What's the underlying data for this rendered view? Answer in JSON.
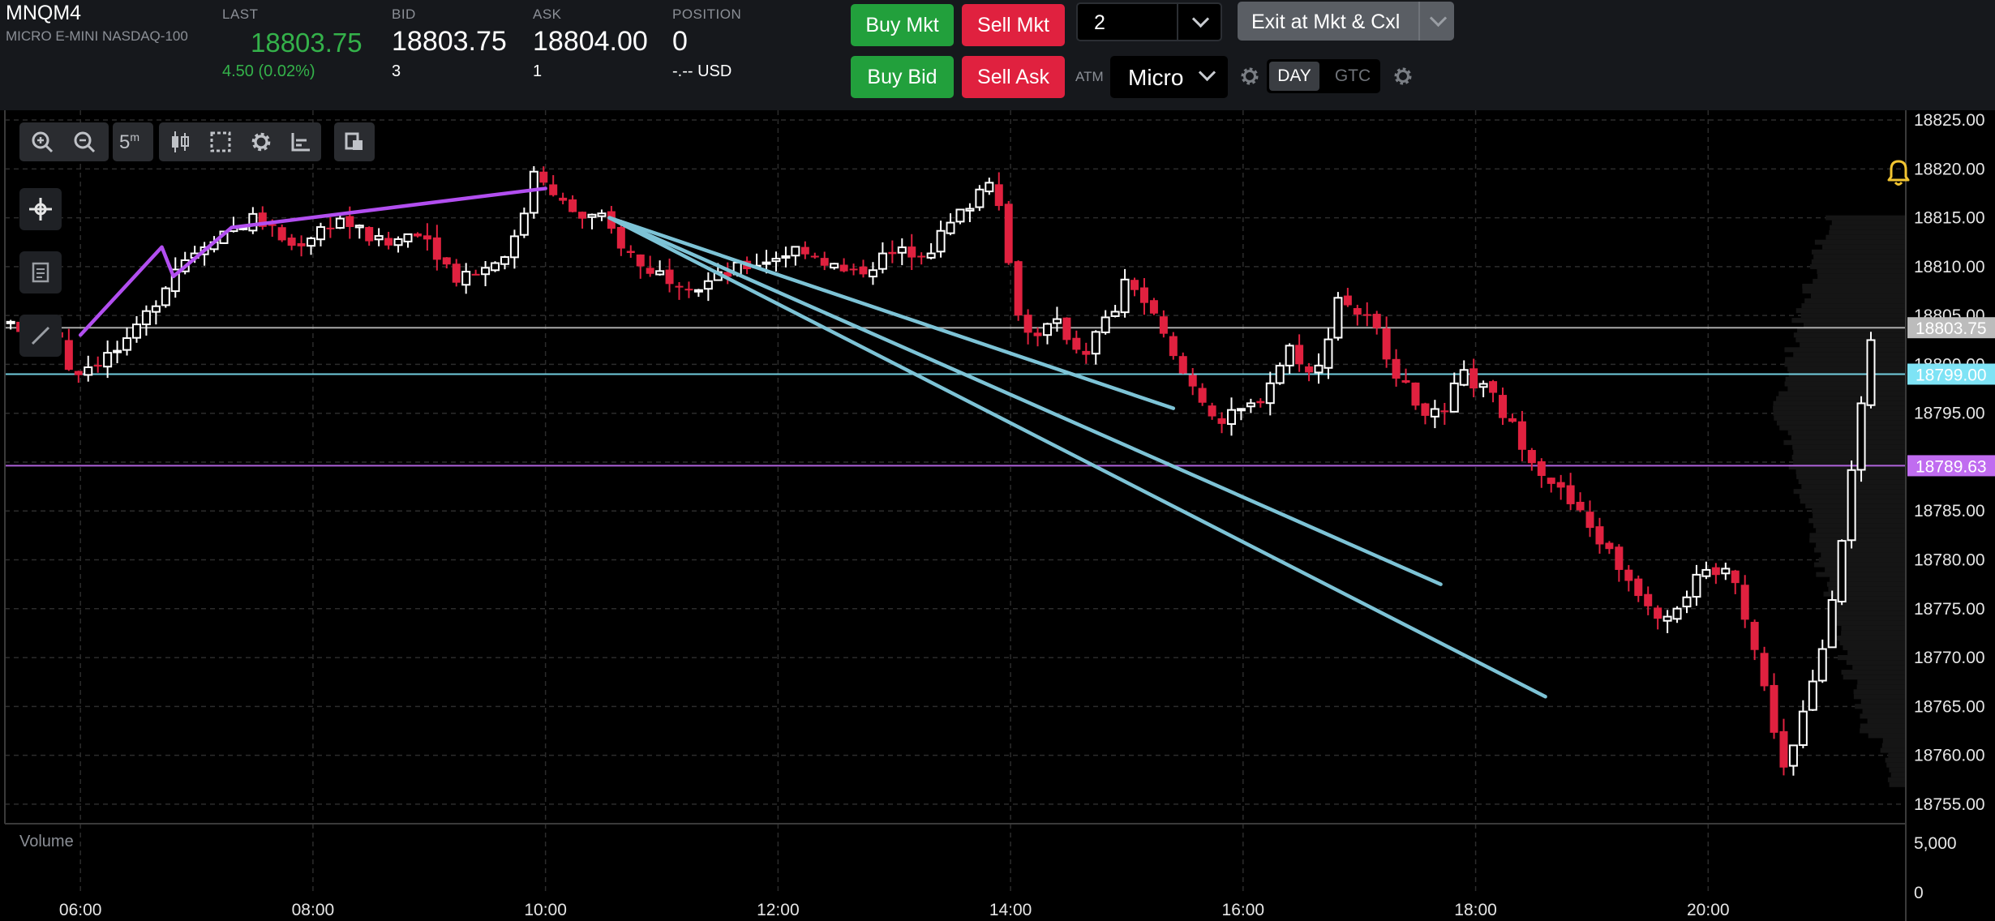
{
  "instrument": {
    "symbol": "MNQM4",
    "description": "MICRO E-MINI NASDAQ-100"
  },
  "quote": {
    "last_label": "LAST",
    "last": "18803.75",
    "change": "4.50 (0.02%)",
    "bid_label": "BID",
    "bid": "18803.75",
    "bid_size": "3",
    "ask_label": "ASK",
    "ask": "18804.00",
    "ask_size": "1",
    "position_label": "POSITION",
    "position": "0",
    "pnl": "-.-- USD"
  },
  "order_entry": {
    "buy_mkt": "Buy Mkt",
    "sell_mkt": "Sell Mkt",
    "buy_bid": "Buy Bid",
    "sell_ask": "Sell Ask",
    "quantity": "2",
    "exit_button": "Exit at Mkt & Cxl",
    "atm_label": "ATM",
    "atm_strategy": "Micro",
    "tif_day": "DAY",
    "tif_gtc": "GTC"
  },
  "toolbar": {
    "interval": "5",
    "interval_unit": "m"
  },
  "colors": {
    "up_candle": "#ffffff",
    "down_candle": "#e0213f",
    "trendline": "#7dc3d6",
    "purple_line": "#b24ef0",
    "last_price_tag": "#bcbcbc",
    "cyan_level": "#7ee3f5",
    "purple_level": "#c06cf0",
    "quote_green": "#34b24a"
  },
  "icons": [
    "zoom-in-icon",
    "zoom-out-icon",
    "candlestick-icon",
    "select-icon",
    "gear-icon",
    "axis-icon",
    "copy-icon",
    "crosshair-icon",
    "notes-icon",
    "draw-line-icon",
    "bell-icon",
    "chevron-down-icon"
  ],
  "chart_data": {
    "type": "candlestick",
    "instrument": "MNQM4",
    "ylim": [
      18753,
      18826
    ],
    "price_ticks": [
      "18825.00",
      "18820.00",
      "18815.00",
      "18810.00",
      "18805.00",
      "18800.00",
      "18795.00",
      "18790.00",
      "18785.00",
      "18780.00",
      "18775.00",
      "18770.00",
      "18765.00",
      "18760.00",
      "18755.00"
    ],
    "price_tick_values": [
      18825,
      18820,
      18815,
      18810,
      18805,
      18800,
      18795,
      18790,
      18785,
      18780,
      18775,
      18770,
      18765,
      18760,
      18755
    ],
    "time_ticks": [
      "06:00",
      "08:00",
      "10:00",
      "12:00",
      "14:00",
      "16:00",
      "18:00",
      "20:00"
    ],
    "time_tick_values": [
      6,
      8,
      10,
      12,
      14,
      16,
      18,
      20
    ],
    "xlim": [
      5.35,
      21.7
    ],
    "price_levels": [
      {
        "label": "18803.75",
        "price": 18803.75,
        "color": "#bcbcbc"
      },
      {
        "label": "18799.00",
        "price": 18799.0,
        "color": "#7ee3f5"
      },
      {
        "label": "18789.63",
        "price": 18789.63,
        "color": "#c06cf0"
      }
    ],
    "trendlines_time_price": [
      {
        "color": "#b24ef0",
        "points": [
          [
            6.0,
            18803
          ],
          [
            6.7,
            18812
          ],
          [
            6.8,
            18809
          ],
          [
            7.2,
            18813
          ],
          [
            7.3,
            18814
          ],
          [
            10.0,
            18818
          ]
        ]
      },
      {
        "color": "#7dc3d6",
        "points": [
          [
            10.55,
            18815
          ],
          [
            15.4,
            18795.5
          ]
        ]
      },
      {
        "color": "#7dc3d6",
        "points": [
          [
            10.55,
            18815
          ],
          [
            17.7,
            18777.5
          ]
        ]
      },
      {
        "color": "#7dc3d6",
        "points": [
          [
            10.55,
            18815
          ],
          [
            18.6,
            18766
          ]
        ]
      }
    ],
    "pivots": [
      [
        5.4,
        18804
      ],
      [
        5.9,
        18803
      ],
      [
        6.0,
        18799
      ],
      [
        6.5,
        18802
      ],
      [
        6.9,
        18810
      ],
      [
        7.2,
        18813
      ],
      [
        7.6,
        18815
      ],
      [
        7.9,
        18812
      ],
      [
        8.3,
        18815
      ],
      [
        8.7,
        18812
      ],
      [
        9.0,
        18814
      ],
      [
        9.3,
        18809
      ],
      [
        9.6,
        18810
      ],
      [
        9.85,
        18813
      ],
      [
        10.0,
        18821
      ],
      [
        10.15,
        18817
      ],
      [
        10.4,
        18815
      ],
      [
        10.55,
        18815
      ],
      [
        10.9,
        18810
      ],
      [
        11.4,
        18808
      ],
      [
        11.8,
        18810
      ],
      [
        12.3,
        18812
      ],
      [
        12.7,
        18809
      ],
      [
        13.0,
        18811
      ],
      [
        13.4,
        18812
      ],
      [
        13.7,
        18816
      ],
      [
        13.95,
        18820
      ],
      [
        14.05,
        18811
      ],
      [
        14.2,
        18803
      ],
      [
        14.5,
        18804
      ],
      [
        14.7,
        18801
      ],
      [
        15.0,
        18806
      ],
      [
        15.1,
        18809
      ],
      [
        15.35,
        18804
      ],
      [
        15.5,
        18800
      ],
      [
        15.7,
        18797
      ],
      [
        15.9,
        18794
      ],
      [
        16.2,
        18796
      ],
      [
        16.5,
        18802
      ],
      [
        16.7,
        18798
      ],
      [
        16.9,
        18807
      ],
      [
        17.2,
        18804
      ],
      [
        17.5,
        18797
      ],
      [
        17.8,
        18794
      ],
      [
        17.95,
        18799
      ],
      [
        18.2,
        18797
      ],
      [
        18.6,
        18790
      ],
      [
        18.95,
        18785
      ],
      [
        19.15,
        18782
      ],
      [
        19.4,
        18778
      ],
      [
        19.7,
        18774
      ],
      [
        20.0,
        18778
      ],
      [
        20.3,
        18779
      ],
      [
        20.5,
        18770
      ],
      [
        20.75,
        18758
      ],
      [
        20.9,
        18764
      ],
      [
        21.05,
        18770
      ],
      [
        21.2,
        18780
      ],
      [
        21.5,
        18803
      ]
    ],
    "profile_color": "#151515",
    "volume": {
      "label": "Volume",
      "ticks": [
        "5,000",
        "0"
      ],
      "tick_values": [
        5000,
        0
      ],
      "ylim": [
        0,
        5900
      ]
    }
  }
}
